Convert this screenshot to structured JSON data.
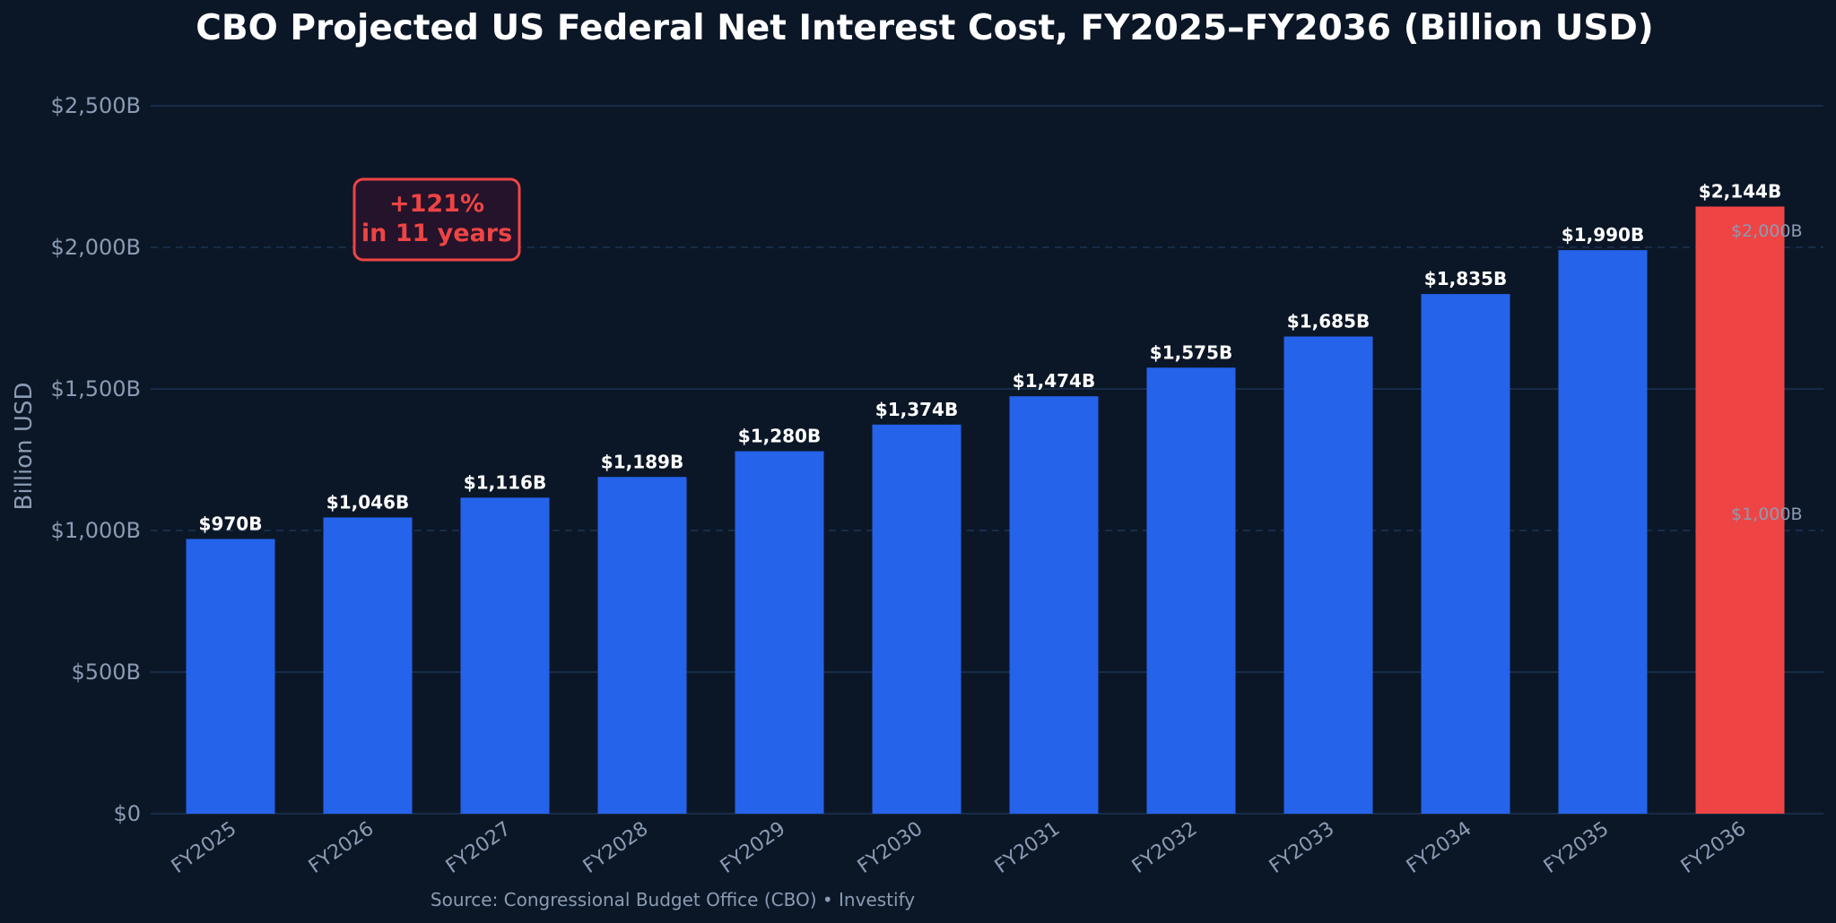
{
  "chart_data": {
    "type": "bar",
    "title": "CBO Projected US Federal Net Interest Cost, FY2025–FY2036 (Billion USD)",
    "ylabel": "Billion USD",
    "xlabel": "",
    "categories": [
      "FY2025",
      "FY2026",
      "FY2027",
      "FY2028",
      "FY2029",
      "FY2030",
      "FY2031",
      "FY2032",
      "FY2033",
      "FY2034",
      "FY2035",
      "FY2036"
    ],
    "values": [
      970,
      1046,
      1116,
      1189,
      1280,
      1374,
      1474,
      1575,
      1685,
      1835,
      1990,
      2144
    ],
    "value_labels": [
      "$970B",
      "$1,046B",
      "$1,116B",
      "$1,189B",
      "$1,280B",
      "$1,374B",
      "$1,474B",
      "$1,575B",
      "$1,685B",
      "$1,835B",
      "$1,990B",
      "$2,144B"
    ],
    "ylim": [
      0,
      2500
    ],
    "yticks": [
      0,
      500,
      1000,
      1500,
      2000,
      2500
    ],
    "ytick_labels": [
      "$0",
      "$500B",
      "$1,000B",
      "$1,500B",
      "$2,000B",
      "$2,500B"
    ],
    "reference_lines": [
      {
        "value": 1000,
        "label": "$1,000B"
      },
      {
        "value": 2000,
        "label": "$2,000B"
      }
    ],
    "annotation": {
      "line1": "+121%",
      "line2": "in 11 years"
    },
    "source": "Source: Congressional Budget Office (CBO) • Investify",
    "grid": true,
    "colors": {
      "background": "#0b1727",
      "bar": "#2563eb",
      "highlight_bar": "#ef4444",
      "grid": "#1c3352",
      "annotation_border": "#ef4444",
      "annotation_fill": "#24132b"
    }
  }
}
